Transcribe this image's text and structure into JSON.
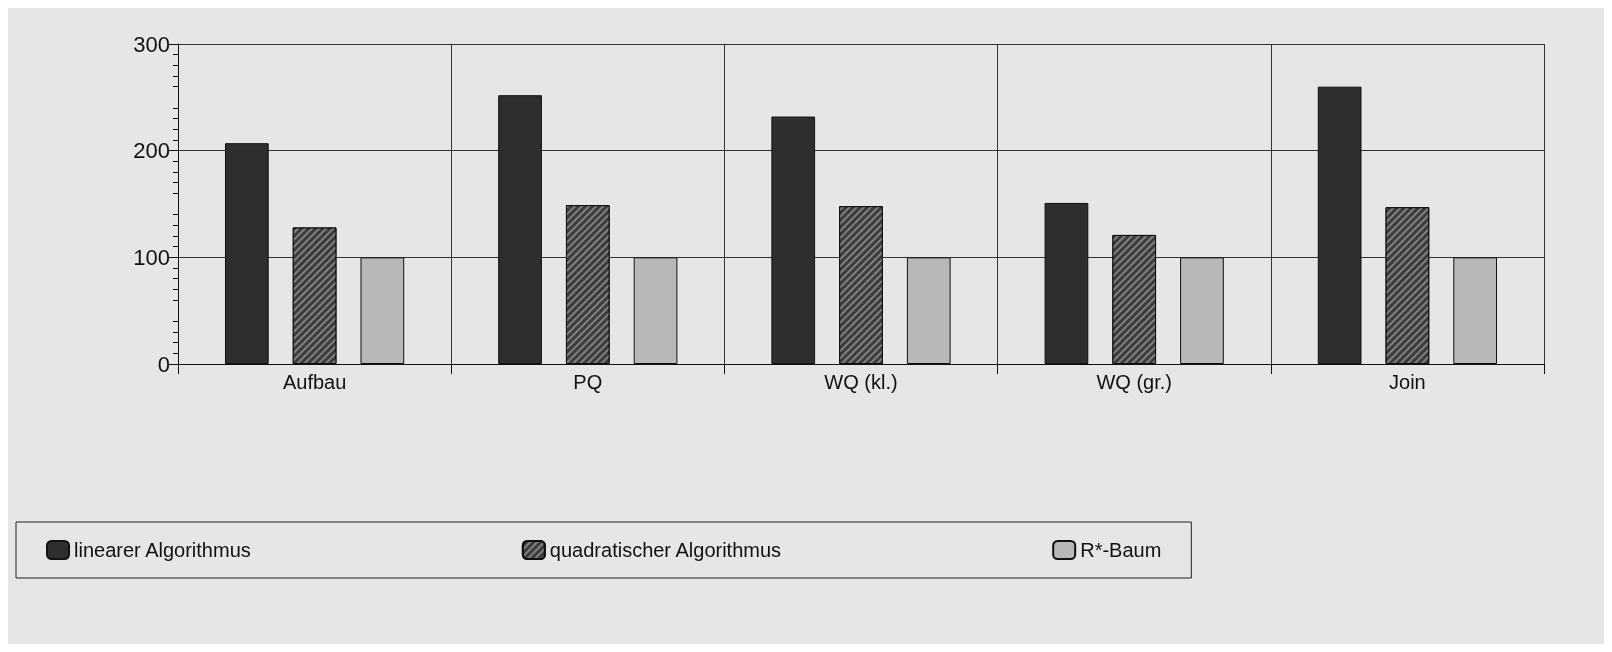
{
  "chart_data": {
    "type": "bar",
    "categories": [
      "Aufbau",
      "PQ",
      "WQ (kl.)",
      "WQ (gr.)",
      "Join"
    ],
    "series": [
      {
        "name": "linearer Algorithmus",
        "color": "#2e2e2e",
        "values": [
          207,
          252,
          232,
          151,
          260
        ]
      },
      {
        "name": "quadratischer Algorithmus",
        "color": "#3c3c3c",
        "values": [
          128,
          149,
          148,
          121,
          147
        ]
      },
      {
        "name": "R*-Baum",
        "color": "#b8b8b8",
        "values": [
          100,
          100,
          100,
          100,
          100
        ]
      }
    ],
    "ylim": [
      0,
      300
    ],
    "yticks": [
      0,
      100,
      200,
      300
    ],
    "grid": true,
    "legend": "bottom"
  }
}
